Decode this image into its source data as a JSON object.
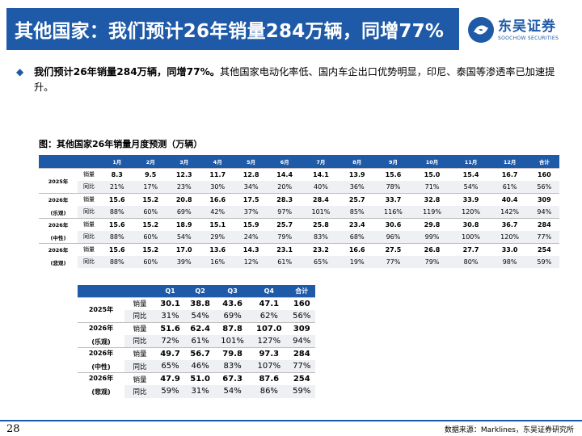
{
  "header": {
    "title": "其他国家：我们预计26年销量284万辆，同增77%",
    "logo_cn": "东吴证券",
    "logo_en": "SOOCHOW SECURITIES",
    "brand_color": "#1e5aa8"
  },
  "bullet": {
    "icon": "diamond-bullet-icon",
    "bold": "我们预计26年销量284万辆，同增77%。",
    "rest": "其他国家电动化率低、国内车企出口优势明显，印尼、泰国等渗透率已加速提升。"
  },
  "figure_caption": "图：其他国家26年销量月度预测（万辆）",
  "monthly_table": {
    "headers": [
      "",
      "",
      "1月",
      "2月",
      "3月",
      "4月",
      "5月",
      "6月",
      "7月",
      "8月",
      "9月",
      "10月",
      "11月",
      "12月",
      "合计"
    ],
    "groups": [
      {
        "label_1": "2025年",
        "label_2": "",
        "sales_label": "销量",
        "yoy_label": "同比",
        "sales": [
          "8.3",
          "9.5",
          "12.3",
          "11.7",
          "12.8",
          "14.4",
          "14.1",
          "13.9",
          "15.6",
          "15.0",
          "15.4",
          "16.7",
          "160"
        ],
        "yoy": [
          "21%",
          "17%",
          "23%",
          "30%",
          "34%",
          "20%",
          "40%",
          "36%",
          "78%",
          "71%",
          "54%",
          "61%",
          "56%"
        ]
      },
      {
        "label_1": "2026年",
        "label_2": "(乐观)",
        "sales_label": "销量",
        "yoy_label": "同比",
        "sales": [
          "15.6",
          "15.2",
          "20.8",
          "16.6",
          "17.5",
          "28.3",
          "28.4",
          "25.7",
          "33.7",
          "32.8",
          "33.9",
          "40.4",
          "309"
        ],
        "yoy": [
          "88%",
          "60%",
          "69%",
          "42%",
          "37%",
          "97%",
          "101%",
          "85%",
          "116%",
          "119%",
          "120%",
          "142%",
          "94%"
        ]
      },
      {
        "label_1": "2026年",
        "label_2": "(中性)",
        "sales_label": "销量",
        "yoy_label": "同比",
        "sales": [
          "15.6",
          "15.2",
          "18.9",
          "15.1",
          "15.9",
          "25.7",
          "25.8",
          "23.4",
          "30.6",
          "29.8",
          "30.8",
          "36.7",
          "284"
        ],
        "yoy": [
          "88%",
          "60%",
          "54%",
          "29%",
          "24%",
          "79%",
          "83%",
          "68%",
          "96%",
          "99%",
          "100%",
          "120%",
          "77%"
        ]
      },
      {
        "label_1": "2026年",
        "label_2": "(悲观)",
        "sales_label": "销量",
        "yoy_label": "同比",
        "sales": [
          "15.6",
          "15.2",
          "17.0",
          "13.6",
          "14.3",
          "23.1",
          "23.2",
          "16.6",
          "27.5",
          "26.8",
          "27.7",
          "33.0",
          "254"
        ],
        "yoy": [
          "88%",
          "60%",
          "39%",
          "16%",
          "12%",
          "61%",
          "65%",
          "19%",
          "77%",
          "79%",
          "80%",
          "98%",
          "59%"
        ]
      }
    ]
  },
  "quarterly_table": {
    "headers": [
      "",
      "",
      "Q1",
      "Q2",
      "Q3",
      "Q4",
      "合计"
    ],
    "groups": [
      {
        "label_1": "2025年",
        "label_2": "",
        "sales_label": "销量",
        "yoy_label": "同比",
        "sales": [
          "30.1",
          "38.8",
          "43.6",
          "47.1",
          "160"
        ],
        "yoy": [
          "31%",
          "54%",
          "69%",
          "62%",
          "56%"
        ]
      },
      {
        "label_1": "2026年",
        "label_2": "(乐观)",
        "sales_label": "销量",
        "yoy_label": "同比",
        "sales": [
          "51.6",
          "62.4",
          "87.8",
          "107.0",
          "309"
        ],
        "yoy": [
          "72%",
          "61%",
          "101%",
          "127%",
          "94%"
        ]
      },
      {
        "label_1": "2026年",
        "label_2": "(中性)",
        "sales_label": "销量",
        "yoy_label": "同比",
        "sales": [
          "49.7",
          "56.7",
          "79.8",
          "97.3",
          "284"
        ],
        "yoy": [
          "65%",
          "46%",
          "83%",
          "107%",
          "77%"
        ]
      },
      {
        "label_1": "2026年",
        "label_2": "(悲观)",
        "sales_label": "销量",
        "yoy_label": "同比",
        "sales": [
          "47.9",
          "51.0",
          "67.3",
          "87.6",
          "254"
        ],
        "yoy": [
          "59%",
          "31%",
          "54%",
          "86%",
          "59%"
        ]
      }
    ]
  },
  "footer": {
    "page_number": "28",
    "source": "数据来源：Marklines，东吴证券研究所"
  }
}
